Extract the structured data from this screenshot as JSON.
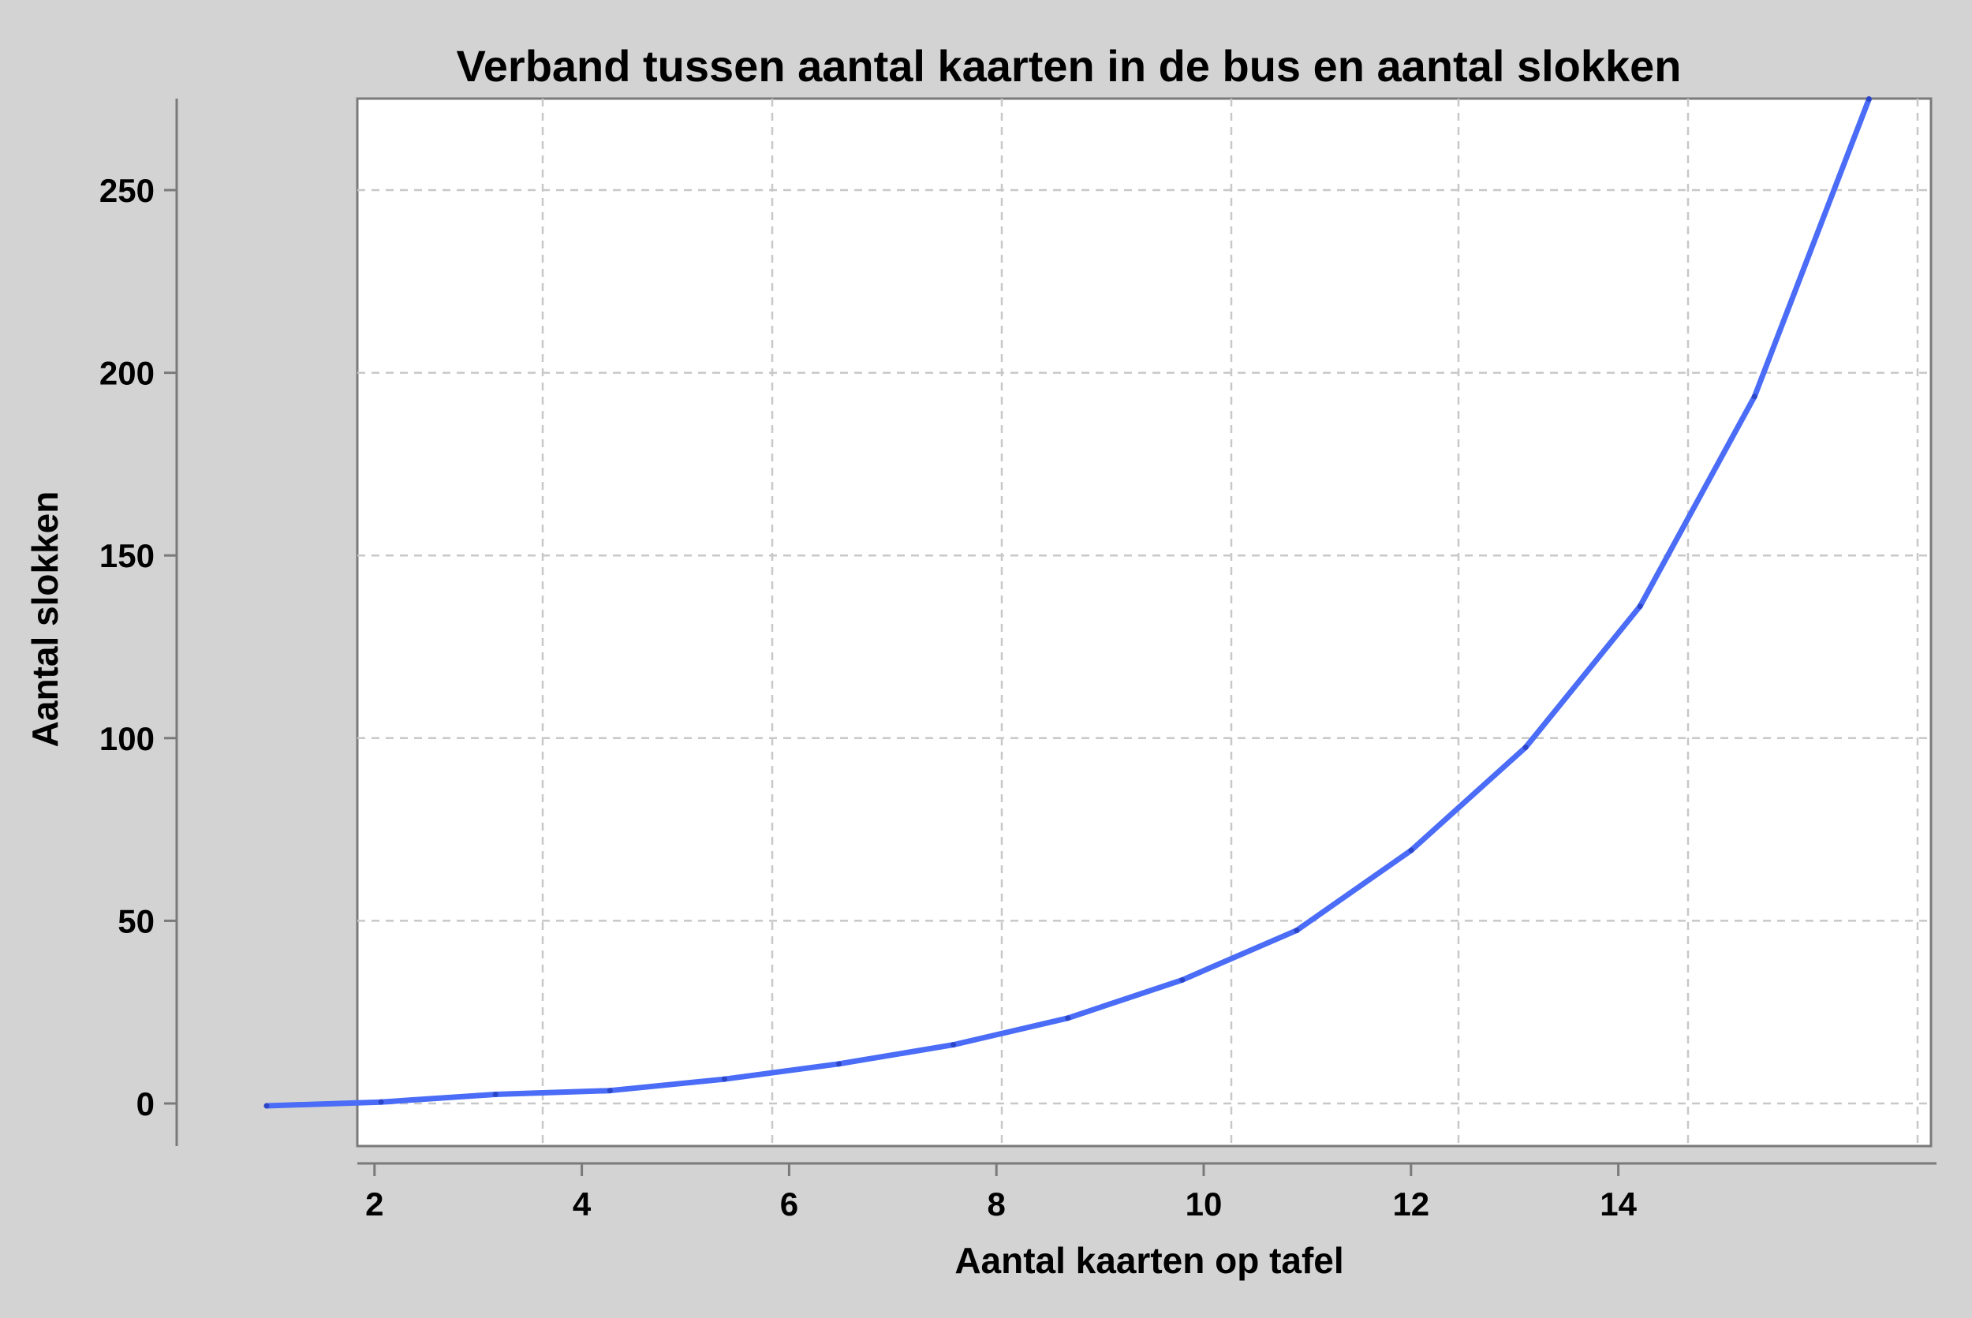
{
  "chart_data": {
    "type": "line",
    "title": "Verband tussen aantal kaarten in de bus en aantal slokken",
    "xlabel": "Aantal kaarten op tafel",
    "ylabel": "Aantal slokken",
    "xlim": [
      -1.5,
      15.6
    ],
    "ylim": [
      -12,
      275
    ],
    "xticks": [
      "2",
      "4",
      "6",
      "8",
      "10",
      "12",
      "14"
    ],
    "yticks": [
      "0",
      "50",
      "100",
      "150",
      "200",
      "250"
    ],
    "grid": true,
    "series": [
      {
        "color": "#4a6cf7",
        "x": [
          0,
          1,
          2,
          3,
          4,
          5,
          6,
          7,
          8,
          9,
          10,
          11,
          12,
          13,
          14
        ],
        "y": [
          0,
          1,
          3,
          4,
          7,
          11,
          16,
          23,
          33,
          46,
          67,
          94,
          131,
          186,
          264
        ]
      }
    ]
  }
}
